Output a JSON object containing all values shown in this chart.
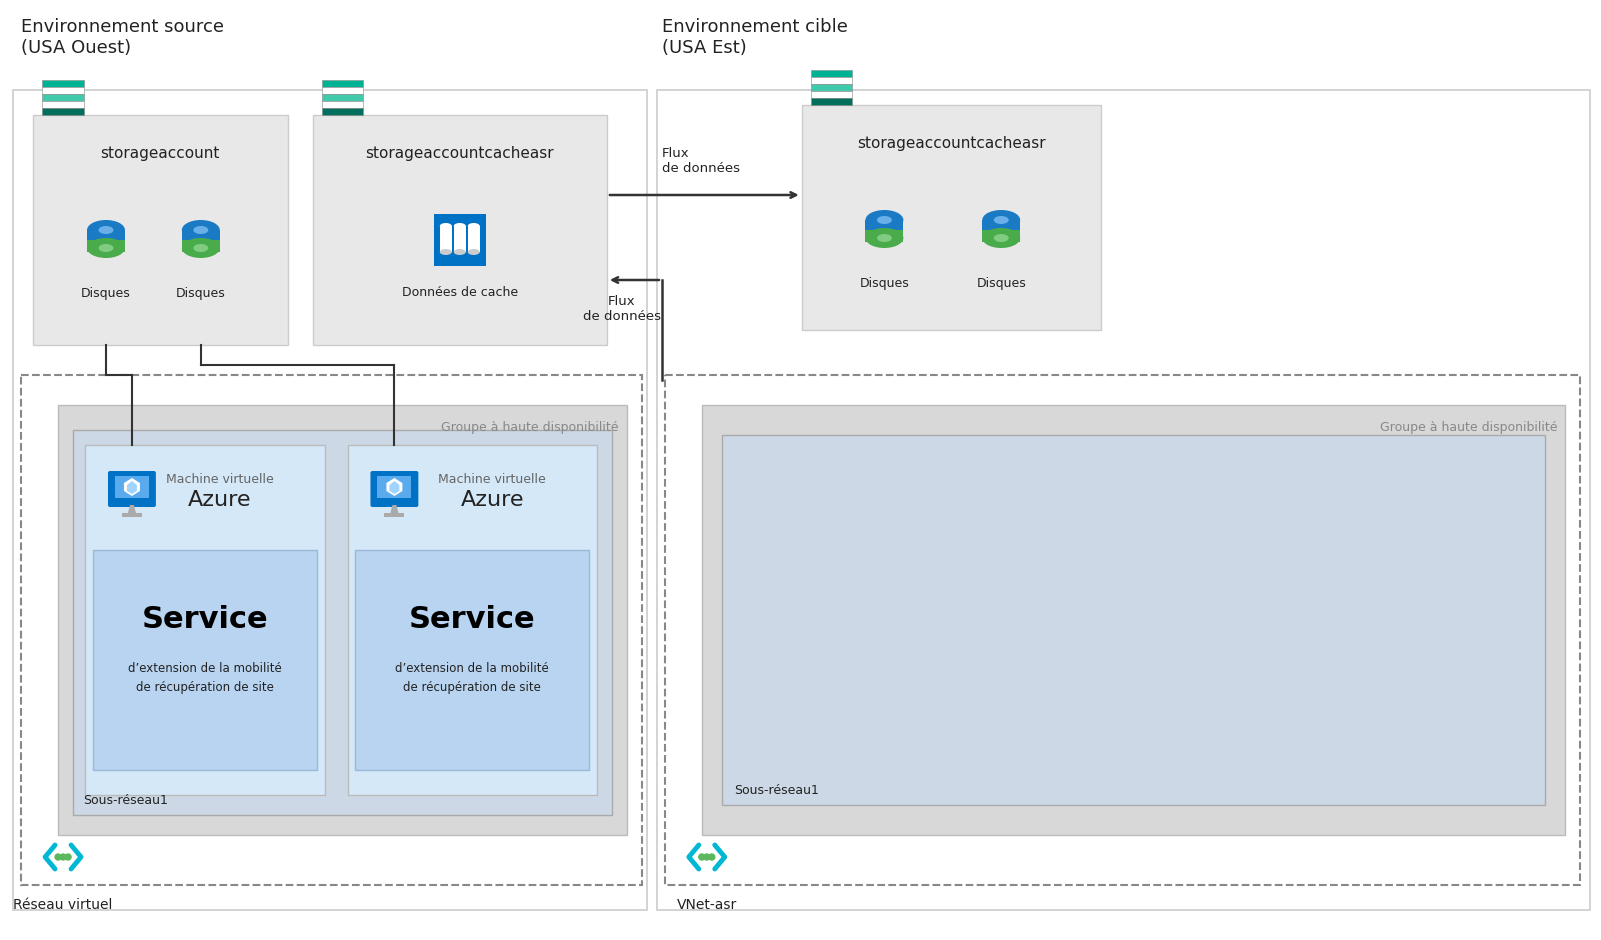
{
  "bg_color": "#ffffff",
  "source_env_label": "Environnement source\n(USA Ouest)",
  "target_env_label": "Environnement cible\n(USA Est)",
  "source_storage1_label": "storageaccount",
  "source_storage2_label": "storageaccountcacheasr",
  "target_storage_label": "storageaccountcacheasr",
  "disk_label": "Disques",
  "cache_label": "Données de cache",
  "flux_label1": "Flux\nde données",
  "flux_label2": "Flux\nde données",
  "avset_label_src": "Groupe à haute disponibilité",
  "avset_label_tgt": "Groupe à haute disponibilité",
  "vm_label1": "Machine virtuelle",
  "vm_label2": "Azure",
  "service_line1": "Service",
  "service_line2": "d’extension de la mobilité",
  "service_line3": "de récupération de site",
  "subnet_label_src": "Sous-réseau1",
  "subnet_label_tgt": "Sous-réseau1",
  "vnet_label_src": "Réseau virtuel",
  "vnet_label_tgt": "VNet-asr",
  "gray_box": "#e8e8e8",
  "gray_box2": "#d8d8d8",
  "light_blue_box": "#cce0f5",
  "service_box_color": "#b8d5f0",
  "blue_disk": "#1a78c2",
  "green_disk": "#4aab4a",
  "azure_blue": "#0072c6",
  "storage_teal1": "#00b294",
  "storage_white": "#ffffff",
  "vnet_cyan": "#00b8d4",
  "vnet_green": "#5cb85c",
  "arrow_color": "#333333",
  "text_dark": "#222222",
  "text_gray": "#666666",
  "text_light": "#888888"
}
